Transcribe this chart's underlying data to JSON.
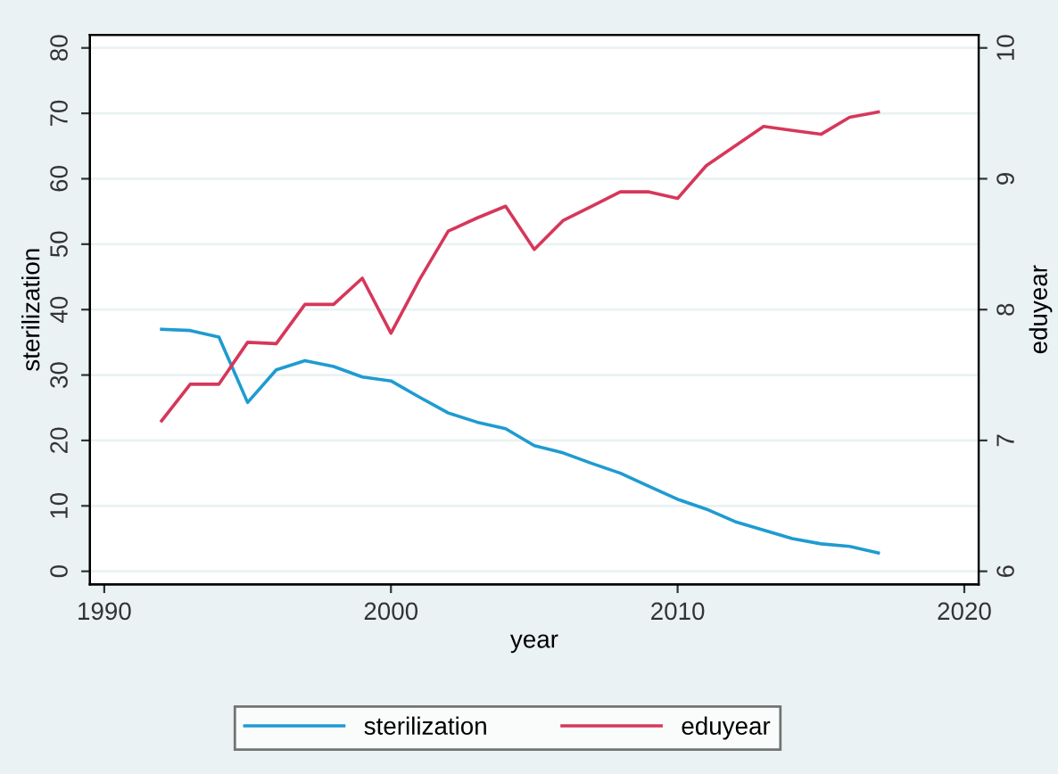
{
  "chart_data": {
    "type": "line",
    "xlabel": "year",
    "ylabel": "sterilization",
    "y2label": "eduyear",
    "x": [
      1992,
      1993,
      1994,
      1995,
      1996,
      1997,
      1998,
      1999,
      2000,
      2001,
      2002,
      2003,
      2004,
      2005,
      2006,
      2007,
      2008,
      2009,
      2010,
      2011,
      2012,
      2013,
      2014,
      2015,
      2016,
      2017
    ],
    "series": [
      {
        "name": "sterilization",
        "color": "#1f9bd1",
        "values": [
          37,
          36.8,
          35.8,
          25.8,
          30.8,
          32.2,
          31.3,
          29.7,
          29.1,
          26.6,
          24.2,
          22.8,
          21.8,
          19.2,
          18.1,
          16.5,
          15,
          13,
          11,
          9.5,
          7.6,
          6.3,
          5,
          4.2,
          3.8,
          2.8
        ]
      },
      {
        "name": "eduyear",
        "color": "#d6375a",
        "axis": "y2",
        "values": [
          7.15,
          7.43,
          7.43,
          7.75,
          7.74,
          8.04,
          8.04,
          8.24,
          7.82,
          8.23,
          8.6,
          8.7,
          8.79,
          8.46,
          8.68,
          8.79,
          8.9,
          8.9,
          8.85,
          9.1,
          9.25,
          9.4,
          9.37,
          9.34,
          9.47,
          9.51
        ]
      }
    ],
    "xlim": [
      1989.5,
      2020.5
    ],
    "xticks": [
      1990,
      2000,
      2010,
      2020
    ],
    "ylim": [
      -2,
      82
    ],
    "yticks": [
      0,
      10,
      20,
      30,
      40,
      50,
      60,
      70,
      80
    ],
    "y2lim": [
      5.9,
      10.1
    ],
    "y2ticks": [
      6,
      7,
      8,
      9,
      10
    ],
    "grid": "y",
    "legend": "bottom",
    "line_style": "solid",
    "marker": "none"
  }
}
